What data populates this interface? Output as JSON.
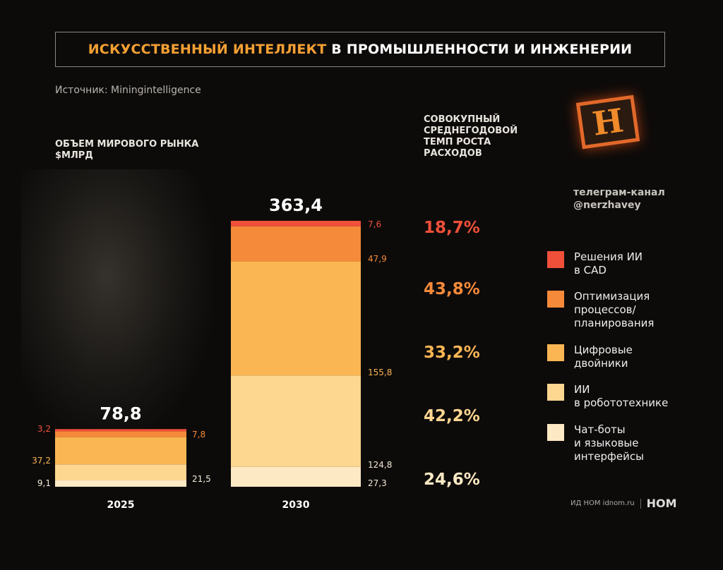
{
  "title": {
    "accent": "ИСКУССТВЕННЫЙ ИНТЕЛЛЕКТ",
    "rest": " В ПРОМЫШЛЕННОСТИ И ИНЖЕНЕРИИ"
  },
  "source": "Источник: Miningintelligence",
  "left_heading": [
    "ОБЪЕМ МИРОВОГО РЫНКА",
    "$МЛРД"
  ],
  "right_heading": [
    "СОВОКУПНЫЙ",
    "СРЕДНЕГОДОВОЙ",
    "ТЕМП РОСТА",
    "РАСХОДОВ"
  ],
  "logo_letter": "Н",
  "telegram": [
    "телеграм-канал",
    "@nerzhavey"
  ],
  "footer": {
    "text": "ИД НОМ idnom.ru",
    "brand": "НОМ"
  },
  "chart_data": {
    "type": "bar",
    "stacked": true,
    "categories": [
      "2025",
      "2030"
    ],
    "totals": [
      "78,8",
      "363,4"
    ],
    "series": [
      {
        "name": "Чат-боты и языковые интерфейсы",
        "values": [
          9.1,
          27.3
        ],
        "labels": [
          "9,1",
          "27,3"
        ],
        "color": "#fde9c4",
        "cagr": "24,6%"
      },
      {
        "name": "ИИ в робототехнике",
        "values": [
          21.5,
          124.8
        ],
        "labels": [
          "21,5",
          "124,8"
        ],
        "color": "#fdd690",
        "cagr": "42,2%"
      },
      {
        "name": "Цифровые двойники",
        "values": [
          37.2,
          155.8
        ],
        "labels": [
          "37,2",
          "155,8"
        ],
        "color": "#fbb654",
        "cagr": "33,2%"
      },
      {
        "name": "Оптимизация процессов/ планирования",
        "values": [
          7.8,
          47.9
        ],
        "labels": [
          "7,8",
          "47,9"
        ],
        "color": "#f58a3a",
        "cagr": "43,8%"
      },
      {
        "name": "Решения ИИ в CAD",
        "values": [
          3.2,
          7.6
        ],
        "labels": [
          "3,2",
          "7,6"
        ],
        "color": "#f0503a",
        "cagr": "18,7%"
      }
    ],
    "legend": [
      {
        "label": "Решения ИИ\nв CAD",
        "color": "#f0503a"
      },
      {
        "label": "Оптимизация\nпроцессов/\nпланирования",
        "color": "#f58a3a"
      },
      {
        "label": "Цифровые\nдвойники",
        "color": "#fbb654"
      },
      {
        "label": "ИИ\nв робототехнике",
        "color": "#fdd690"
      },
      {
        "label": "Чат-боты\nи языковые\nинтерфейсы",
        "color": "#fde9c4"
      }
    ],
    "cagr_order": [
      "18,7%",
      "43,8%",
      "33,2%",
      "42,2%",
      "24,6%"
    ],
    "cagr_colors": [
      "#f0503a",
      "#f58a3a",
      "#fbb654",
      "#fdd690",
      "#fde9c4"
    ],
    "grid": false
  }
}
